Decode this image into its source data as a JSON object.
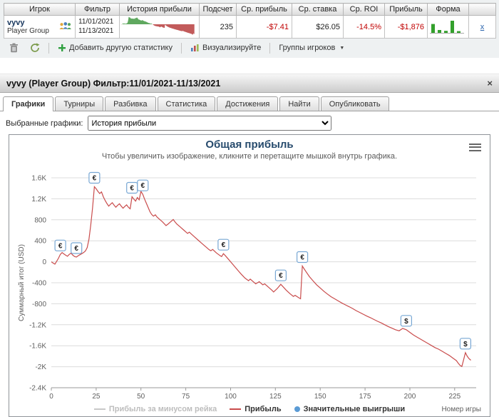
{
  "colors": {
    "negative": "#c00000",
    "link": "#2a64ad",
    "title": "#274b6d"
  },
  "stats_table": {
    "columns": [
      "Игрок",
      "Фильтр",
      "История прибыли",
      "Подсчет",
      "Ср. прибыль",
      "Ср. ставка",
      "Ср. ROI",
      "Прибыль",
      "Форма",
      ""
    ],
    "row": {
      "player_name": "vyvy",
      "player_group": "Player Group",
      "filter_dates": [
        "11/01/2021",
        "11/13/2021"
      ],
      "count": "235",
      "avg_profit": "-$7.41",
      "avg_stake": "$26.05",
      "avg_roi": "-14.5%",
      "profit": "-$1,876",
      "remove_link": "x",
      "form_bars": [
        62,
        20,
        14,
        85,
        12
      ]
    }
  },
  "toolbar": {
    "add_stat": "Добавить другую статистику",
    "visualize": "Визуализируйте",
    "player_groups": "Группы игроков"
  },
  "window_bar": {
    "title": "vyvy (Player Group) Фильтр:11/01/2021-11/13/2021",
    "close": "×"
  },
  "tabs": [
    "Графики",
    "Турниры",
    "Разбивка",
    "Статистика",
    "Достижения",
    "Найти",
    "Опубликовать"
  ],
  "active_tab": "Графики",
  "selector": {
    "label": "Выбранные графики:",
    "value": "История прибыли"
  },
  "chart_data": {
    "type": "line",
    "title": "Общая прибыль",
    "subtitle": "Чтобы увеличить изображение, кликните и перетащите мышкой внутрь графика.",
    "ylabel": "Суммарный итог (USD)",
    "xlabel": "Номер игры",
    "xlim": [
      0,
      237
    ],
    "ylim": [
      -2400,
      1600
    ],
    "grid": true,
    "legend_position": "bottom-center",
    "yticks": [
      {
        "v": 1600,
        "label": "1.6K"
      },
      {
        "v": 1200,
        "label": "1.2K"
      },
      {
        "v": 800,
        "label": "800"
      },
      {
        "v": 400,
        "label": "400"
      },
      {
        "v": 0,
        "label": "0"
      },
      {
        "v": -400,
        "label": "-400"
      },
      {
        "v": -800,
        "label": "-800"
      },
      {
        "v": -1200,
        "label": "-1.2K"
      },
      {
        "v": -1600,
        "label": "-1.6K"
      },
      {
        "v": -2000,
        "label": "-2K"
      },
      {
        "v": -2400,
        "label": "-2.4K"
      }
    ],
    "xticks": [
      0,
      25,
      50,
      75,
      100,
      125,
      150,
      175,
      200,
      225
    ],
    "series": [
      {
        "name": "Прибыль за минусом рейка",
        "color": "#c8c8c8",
        "visible": false,
        "points": []
      },
      {
        "name": "Прибыль",
        "color": "#c94c4c",
        "visible": true,
        "points": [
          [
            0,
            0
          ],
          [
            1,
            -25
          ],
          [
            2,
            -45
          ],
          [
            3,
            10
          ],
          [
            4,
            70
          ],
          [
            5,
            140
          ],
          [
            6,
            175
          ],
          [
            7,
            150
          ],
          [
            8,
            125
          ],
          [
            9,
            105
          ],
          [
            10,
            140
          ],
          [
            11,
            165
          ],
          [
            12,
            125
          ],
          [
            13,
            100
          ],
          [
            14,
            90
          ],
          [
            15,
            115
          ],
          [
            16,
            135
          ],
          [
            17,
            155
          ],
          [
            18,
            175
          ],
          [
            19,
            205
          ],
          [
            20,
            270
          ],
          [
            21,
            430
          ],
          [
            22,
            700
          ],
          [
            23,
            1020
          ],
          [
            24,
            1430
          ],
          [
            25,
            1390
          ],
          [
            26,
            1340
          ],
          [
            27,
            1300
          ],
          [
            28,
            1330
          ],
          [
            29,
            1240
          ],
          [
            30,
            1170
          ],
          [
            31,
            1110
          ],
          [
            32,
            1060
          ],
          [
            33,
            1095
          ],
          [
            34,
            1125
          ],
          [
            35,
            1080
          ],
          [
            36,
            1040
          ],
          [
            37,
            1075
          ],
          [
            38,
            1105
          ],
          [
            39,
            1060
          ],
          [
            40,
            1020
          ],
          [
            41,
            1055
          ],
          [
            42,
            1085
          ],
          [
            43,
            1040
          ],
          [
            44,
            1010
          ],
          [
            45,
            1240
          ],
          [
            46,
            1195
          ],
          [
            47,
            1155
          ],
          [
            48,
            1225
          ],
          [
            49,
            1180
          ],
          [
            50,
            1340
          ],
          [
            51,
            1285
          ],
          [
            52,
            1195
          ],
          [
            53,
            1115
          ],
          [
            54,
            1035
          ],
          [
            55,
            955
          ],
          [
            56,
            900
          ],
          [
            57,
            870
          ],
          [
            58,
            895
          ],
          [
            59,
            850
          ],
          [
            60,
            820
          ],
          [
            62,
            760
          ],
          [
            64,
            690
          ],
          [
            65,
            715
          ],
          [
            66,
            745
          ],
          [
            68,
            805
          ],
          [
            69,
            760
          ],
          [
            70,
            720
          ],
          [
            72,
            660
          ],
          [
            74,
            600
          ],
          [
            76,
            540
          ],
          [
            77,
            565
          ],
          [
            78,
            530
          ],
          [
            80,
            470
          ],
          [
            82,
            410
          ],
          [
            84,
            350
          ],
          [
            86,
            290
          ],
          [
            88,
            230
          ],
          [
            89,
            210
          ],
          [
            90,
            235
          ],
          [
            92,
            170
          ],
          [
            94,
            120
          ],
          [
            95,
            100
          ],
          [
            96,
            155
          ],
          [
            97,
            120
          ],
          [
            98,
            80
          ],
          [
            99,
            40
          ],
          [
            100,
            0
          ],
          [
            102,
            -80
          ],
          [
            104,
            -160
          ],
          [
            106,
            -240
          ],
          [
            108,
            -310
          ],
          [
            110,
            -360
          ],
          [
            111,
            -330
          ],
          [
            113,
            -390
          ],
          [
            114,
            -420
          ],
          [
            116,
            -380
          ],
          [
            118,
            -440
          ],
          [
            119,
            -420
          ],
          [
            121,
            -480
          ],
          [
            123,
            -540
          ],
          [
            124,
            -575
          ],
          [
            126,
            -510
          ],
          [
            128,
            -430
          ],
          [
            129,
            -465
          ],
          [
            131,
            -540
          ],
          [
            133,
            -605
          ],
          [
            135,
            -660
          ],
          [
            136,
            -640
          ],
          [
            138,
            -685
          ],
          [
            139,
            -705
          ],
          [
            140,
            -80
          ],
          [
            141,
            -135
          ],
          [
            142,
            -185
          ],
          [
            144,
            -285
          ],
          [
            146,
            -365
          ],
          [
            148,
            -440
          ],
          [
            150,
            -500
          ],
          [
            152,
            -560
          ],
          [
            154,
            -615
          ],
          [
            156,
            -665
          ],
          [
            158,
            -705
          ],
          [
            160,
            -745
          ],
          [
            162,
            -785
          ],
          [
            164,
            -820
          ],
          [
            166,
            -855
          ],
          [
            168,
            -890
          ],
          [
            170,
            -930
          ],
          [
            172,
            -965
          ],
          [
            174,
            -1000
          ],
          [
            176,
            -1035
          ],
          [
            178,
            -1065
          ],
          [
            180,
            -1100
          ],
          [
            182,
            -1135
          ],
          [
            184,
            -1165
          ],
          [
            186,
            -1200
          ],
          [
            188,
            -1235
          ],
          [
            190,
            -1265
          ],
          [
            192,
            -1295
          ],
          [
            194,
            -1315
          ],
          [
            196,
            -1270
          ],
          [
            198,
            -1295
          ],
          [
            200,
            -1345
          ],
          [
            202,
            -1395
          ],
          [
            204,
            -1435
          ],
          [
            206,
            -1475
          ],
          [
            208,
            -1515
          ],
          [
            210,
            -1555
          ],
          [
            212,
            -1595
          ],
          [
            214,
            -1635
          ],
          [
            216,
            -1665
          ],
          [
            218,
            -1705
          ],
          [
            220,
            -1745
          ],
          [
            222,
            -1785
          ],
          [
            224,
            -1835
          ],
          [
            226,
            -1885
          ],
          [
            227,
            -1935
          ],
          [
            228,
            -1975
          ],
          [
            229,
            -1995
          ],
          [
            230,
            -1865
          ],
          [
            231,
            -1730
          ],
          [
            232,
            -1800
          ],
          [
            233,
            -1845
          ],
          [
            234,
            -1876
          ]
        ]
      }
    ],
    "significant_wins": {
      "name": "Значительные выигрыши",
      "color": "#5b9bd5",
      "border": "#77a7d4",
      "markers": [
        {
          "x": 5,
          "symbol": "€"
        },
        {
          "x": 14,
          "symbol": "€"
        },
        {
          "x": 24,
          "symbol": "€"
        },
        {
          "x": 45,
          "symbol": "€"
        },
        {
          "x": 51,
          "symbol": "€"
        },
        {
          "x": 96,
          "symbol": "€"
        },
        {
          "x": 128,
          "symbol": "€"
        },
        {
          "x": 140,
          "symbol": "€"
        },
        {
          "x": 198,
          "symbol": "$"
        },
        {
          "x": 231,
          "symbol": "$"
        }
      ]
    }
  }
}
